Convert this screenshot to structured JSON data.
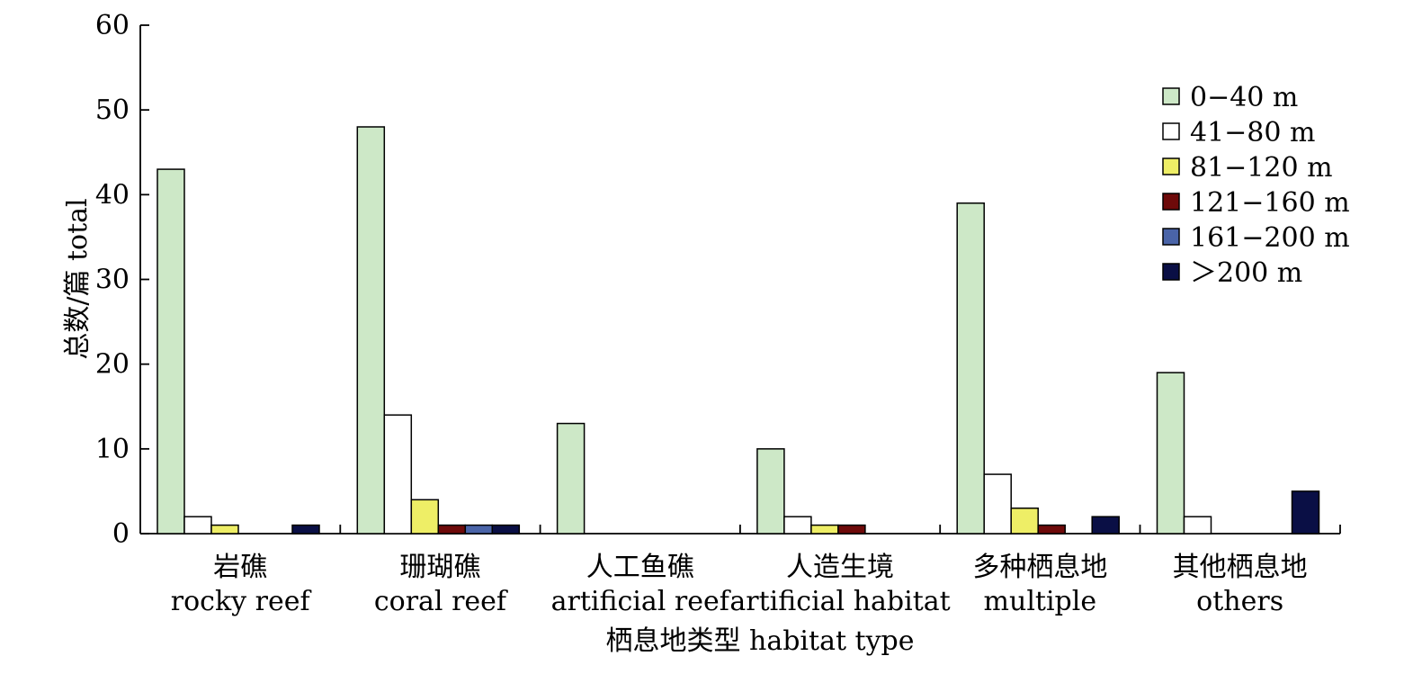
{
  "chart_data": {
    "type": "bar",
    "xlabel": "栖息地类型 habitat type",
    "ylabel": "总数/篇 total",
    "ylim": [
      0,
      60
    ],
    "yticks": [
      0,
      10,
      20,
      30,
      40,
      50,
      60
    ],
    "grid": false,
    "legend_position": "top-right",
    "categories": [
      {
        "zh": "岩礁",
        "en": "rocky reef"
      },
      {
        "zh": "珊瑚礁",
        "en": "coral reef"
      },
      {
        "zh": "人工鱼礁",
        "en": "artificial reef"
      },
      {
        "zh": "人造生境",
        "en": "artificial habitat"
      },
      {
        "zh": "多种栖息地",
        "en": "multiple"
      },
      {
        "zh": "其他栖息地",
        "en": "others"
      }
    ],
    "series": [
      {
        "name": "0−40 m",
        "color": "#cde8c7",
        "values": [
          43,
          48,
          13,
          10,
          39,
          19
        ]
      },
      {
        "name": "41−80 m",
        "color": "#ffffff",
        "values": [
          2,
          14,
          0,
          2,
          7,
          2
        ]
      },
      {
        "name": "81−120 m",
        "color": "#eeee66",
        "values": [
          1,
          4,
          0,
          1,
          3,
          0
        ]
      },
      {
        "name": "121−160 m",
        "color": "#6e0a0a",
        "values": [
          0,
          1,
          0,
          1,
          1,
          0
        ]
      },
      {
        "name": "161−200 m",
        "color": "#4a64a8",
        "values": [
          0,
          1,
          0,
          0,
          0,
          0
        ]
      },
      {
        "name": "＞200 m",
        "color": "#0a0f45",
        "values": [
          1,
          1,
          0,
          0,
          2,
          5
        ]
      }
    ]
  }
}
